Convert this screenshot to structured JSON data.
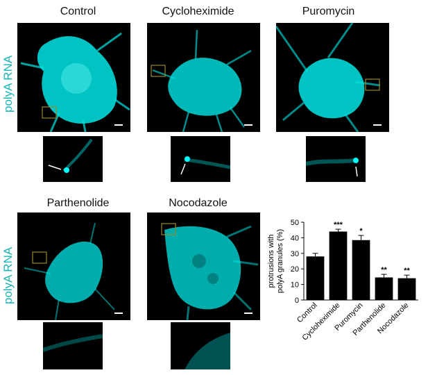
{
  "figure": {
    "row1_titles": [
      "Control",
      "Cycloheximide",
      "Puromycin"
    ],
    "row2_titles": [
      "Parthenolide",
      "Nocodazole"
    ],
    "y_label_row1": "polyA RNA",
    "y_label_row2": "polyA RNA",
    "stain_color": "#00e6e6",
    "box_color": "#9a8a2a"
  },
  "chart_data": {
    "type": "bar",
    "categories": [
      "Control",
      "Cycloheximide",
      "Puromycin",
      "Parthenolide",
      "Nocodazole"
    ],
    "values": [
      28,
      44,
      38.5,
      14.5,
      14
    ],
    "errors": [
      2,
      1.5,
      3,
      2,
      2
    ],
    "significance": [
      "",
      "***",
      "*",
      "**",
      "**"
    ],
    "ylabel_line1": "protrusions with",
    "ylabel_line2": "polyA granules (%)",
    "ylim": [
      0,
      50
    ],
    "yticks": [
      0,
      10,
      20,
      30,
      40,
      50
    ],
    "bar_color": "#000000"
  }
}
